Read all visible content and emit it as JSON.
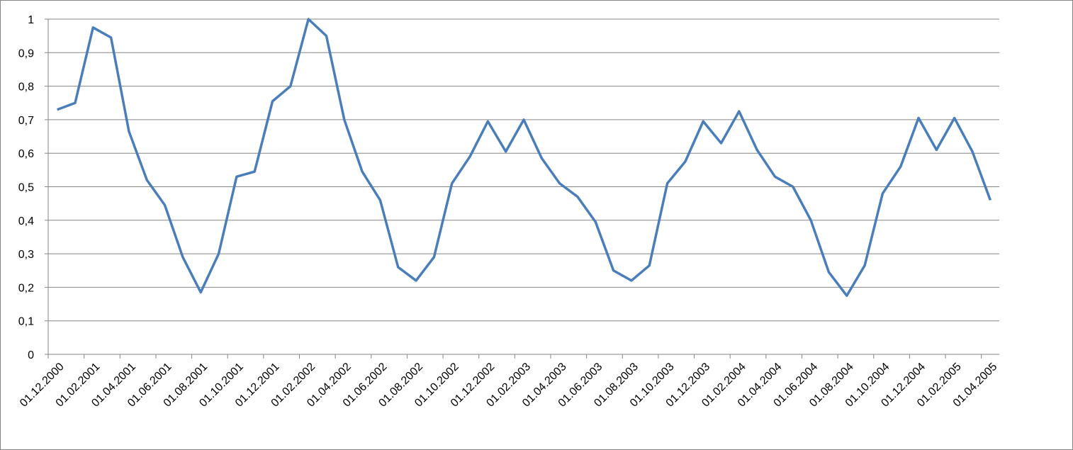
{
  "chart_data": {
    "type": "line",
    "categories": [
      "01.12.2000",
      null,
      "01.02.2001",
      null,
      "01.04.2001",
      null,
      "01.06.2001",
      null,
      "01.08.2001",
      null,
      "01.10.2001",
      null,
      "01.12.2001",
      null,
      "01.02.2002",
      null,
      "01.04.2002",
      null,
      "01.06.2002",
      null,
      "01.08.2002",
      null,
      "01.10.2002",
      null,
      "01.12.2002",
      null,
      "01.02.2003",
      null,
      "01.04.2003",
      null,
      "01.06.2003",
      null,
      "01.08.2003",
      null,
      "01.10.2003",
      null,
      "01.12.2003",
      null,
      "01.02.2004",
      null,
      "01.04.2004",
      null,
      "01.06.2004",
      null,
      "01.08.2004",
      null,
      "01.10.2004",
      null,
      "01.12.2004",
      null,
      "01.02.2005",
      null,
      "01.04.2005"
    ],
    "series": [
      {
        "color": "#4a7ebb",
        "values": [
          0.73,
          0.75,
          0.975,
          0.945,
          0.665,
          0.52,
          0.445,
          0.29,
          0.185,
          0.3,
          0.53,
          0.545,
          0.755,
          0.8,
          1.0,
          0.95,
          0.7,
          0.545,
          0.46,
          0.26,
          0.22,
          0.29,
          0.51,
          0.59,
          0.695,
          0.605,
          0.7,
          0.585,
          0.51,
          0.47,
          0.395,
          0.25,
          0.22,
          0.265,
          0.51,
          0.575,
          0.695,
          0.63,
          0.725,
          0.61,
          0.53,
          0.5,
          0.4,
          0.245,
          0.175,
          0.265,
          0.48,
          0.56,
          0.705,
          0.61,
          0.705,
          0.605,
          0.46
        ]
      }
    ],
    "ylim": [
      0,
      1
    ],
    "yticks": [
      0,
      {
        "value": 0.1,
        "label": "0,1"
      },
      {
        "value": 0.2,
        "label": "0,2"
      },
      {
        "value": 0.3,
        "label": "0,3"
      },
      {
        "value": 0.4,
        "label": "0,4"
      },
      {
        "value": 0.5,
        "label": "0,5"
      },
      {
        "value": 0.6,
        "label": "0,6"
      },
      {
        "value": 0.7,
        "label": "0,7"
      },
      {
        "value": 0.8,
        "label": "0,8"
      },
      {
        "value": 0.9,
        "label": "0,9"
      },
      1
    ],
    "grid": true
  }
}
